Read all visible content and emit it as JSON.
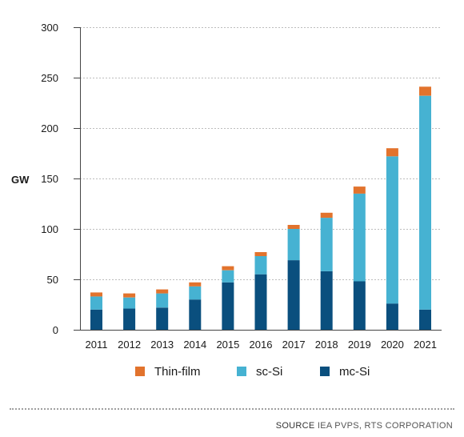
{
  "chart_data": {
    "type": "bar",
    "stacked": true,
    "categories": [
      "2011",
      "2012",
      "2013",
      "2014",
      "2015",
      "2016",
      "2017",
      "2018",
      "2019",
      "2020",
      "2021"
    ],
    "series": [
      {
        "name": "mc-Si",
        "color": "#0a4f7e",
        "values": [
          20,
          21,
          22,
          30,
          47,
          55,
          69,
          58,
          48,
          26,
          20
        ]
      },
      {
        "name": "sc-Si",
        "color": "#46b2d2",
        "values": [
          13,
          11,
          14,
          13,
          12,
          18,
          31,
          53,
          87,
          146,
          212
        ]
      },
      {
        "name": "Thin-film",
        "color": "#e2732d",
        "values": [
          4,
          4,
          4,
          4,
          4,
          4,
          4,
          5,
          7,
          8,
          9
        ]
      }
    ],
    "legend_order": [
      "Thin-film",
      "sc-Si",
      "mc-Si"
    ],
    "ylabel": "GW",
    "ylim": [
      0,
      300
    ],
    "yticks": [
      0,
      50,
      100,
      150,
      200,
      250,
      300
    ],
    "grid": true,
    "legend_position": "bottom"
  },
  "footer": {
    "source_label": "SOURCE",
    "source_text": "IEA PVPS, RTS CORPORATION"
  }
}
